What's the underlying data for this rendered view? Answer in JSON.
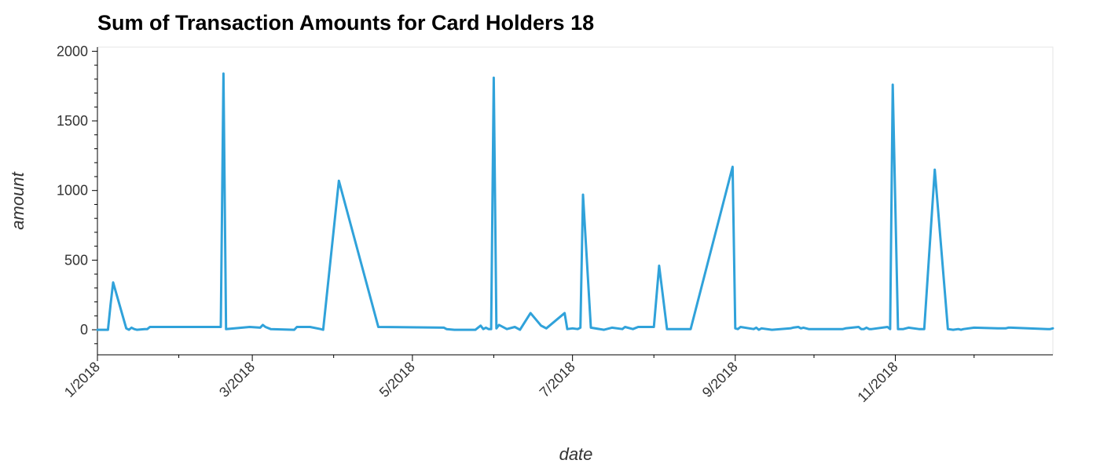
{
  "chart_data": {
    "type": "line",
    "title": "Sum of Transaction Amounts for Card Holders 18",
    "xlabel": "date",
    "ylabel": "amount",
    "ylim": [
      -180,
      2030
    ],
    "xlim": [
      "2018-01-01",
      "2018-12-31"
    ],
    "x_ticks": [
      {
        "date": "2018-01-01",
        "label": "1/2018"
      },
      {
        "date": "2018-03-01",
        "label": "3/2018"
      },
      {
        "date": "2018-05-01",
        "label": "5/2018"
      },
      {
        "date": "2018-07-01",
        "label": "7/2018"
      },
      {
        "date": "2018-09-01",
        "label": "9/2018"
      },
      {
        "date": "2018-11-01",
        "label": "11/2018"
      }
    ],
    "y_ticks": [
      0,
      500,
      1000,
      1500,
      2000
    ],
    "grid": false,
    "line_color": "#30a2da",
    "series": [
      {
        "x": [
          "2018-01-01",
          "2018-01-05",
          "2018-01-06",
          "2018-01-07",
          "2018-01-12",
          "2018-01-13",
          "2018-01-14",
          "2018-01-15",
          "2018-01-16",
          "2018-01-19",
          "2018-01-20",
          "2018-01-21",
          "2018-02-17",
          "2018-02-18",
          "2018-02-19",
          "2018-02-28",
          "2018-03-04",
          "2018-03-05",
          "2018-03-06",
          "2018-03-08",
          "2018-03-17",
          "2018-03-18",
          "2018-03-23",
          "2018-03-27",
          "2018-03-28",
          "2018-04-03",
          "2018-04-18",
          "2018-05-13",
          "2018-05-14",
          "2018-05-17",
          "2018-05-25",
          "2018-05-27",
          "2018-05-28",
          "2018-05-29",
          "2018-05-30",
          "2018-05-31",
          "2018-06-01",
          "2018-06-02",
          "2018-06-03",
          "2018-06-06",
          "2018-06-09",
          "2018-06-11",
          "2018-06-15",
          "2018-06-19",
          "2018-06-20",
          "2018-06-21",
          "2018-06-28",
          "2018-06-29",
          "2018-07-01",
          "2018-07-03",
          "2018-07-04",
          "2018-07-05",
          "2018-07-08",
          "2018-07-13",
          "2018-07-14",
          "2018-07-16",
          "2018-07-20",
          "2018-07-21",
          "2018-07-24",
          "2018-07-26",
          "2018-07-28",
          "2018-08-01",
          "2018-08-03",
          "2018-08-06",
          "2018-08-11",
          "2018-08-15",
          "2018-08-31",
          "2018-09-01",
          "2018-09-02",
          "2018-09-03",
          "2018-09-08",
          "2018-09-09",
          "2018-09-10",
          "2018-09-11",
          "2018-09-15",
          "2018-09-22",
          "2018-09-23",
          "2018-09-25",
          "2018-09-26",
          "2018-09-27",
          "2018-09-29",
          "2018-10-12",
          "2018-10-13",
          "2018-10-18",
          "2018-10-19",
          "2018-10-20",
          "2018-10-21",
          "2018-10-22",
          "2018-10-23",
          "2018-10-29",
          "2018-10-30",
          "2018-10-31",
          "2018-11-02",
          "2018-11-03",
          "2018-11-04",
          "2018-11-06",
          "2018-11-10",
          "2018-11-11",
          "2018-11-12",
          "2018-11-16",
          "2018-11-21",
          "2018-11-23",
          "2018-11-25",
          "2018-11-26",
          "2018-11-27",
          "2018-12-01",
          "2018-12-10",
          "2018-12-13",
          "2018-12-14",
          "2018-12-15",
          "2018-12-29",
          "2018-12-30",
          "2018-12-31"
        ],
        "y": [
          0,
          0,
          180,
          340,
          10,
          0,
          15,
          5,
          0,
          5,
          5,
          20,
          20,
          1840,
          5,
          20,
          15,
          35,
          20,
          5,
          0,
          20,
          20,
          5,
          0,
          1070,
          20,
          15,
          5,
          0,
          0,
          30,
          5,
          15,
          5,
          5,
          1810,
          10,
          35,
          5,
          20,
          0,
          120,
          30,
          20,
          10,
          120,
          5,
          10,
          5,
          15,
          970,
          15,
          0,
          5,
          15,
          5,
          20,
          5,
          20,
          20,
          20,
          460,
          5,
          5,
          5,
          1170,
          10,
          5,
          20,
          5,
          15,
          0,
          10,
          0,
          10,
          15,
          20,
          10,
          15,
          5,
          5,
          10,
          20,
          5,
          5,
          15,
          5,
          5,
          20,
          5,
          1760,
          5,
          5,
          5,
          15,
          5,
          5,
          5,
          1150,
          5,
          0,
          5,
          0,
          5,
          15,
          10,
          10,
          15,
          15,
          5,
          5,
          10
        ]
      }
    ]
  }
}
